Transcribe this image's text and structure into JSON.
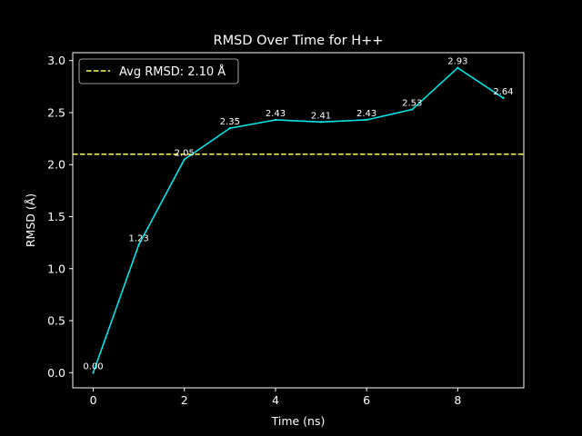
{
  "chart_data": {
    "type": "line",
    "title": "RMSD Over Time for H++",
    "xlabel": "Time (ns)",
    "ylabel": "RMSD (Å)",
    "xlim": [
      -0.45,
      9.45
    ],
    "ylim": [
      -0.146,
      3.076
    ],
    "xticks": [
      0,
      2,
      4,
      6,
      8
    ],
    "xtick_labels": [
      "0",
      "2",
      "4",
      "6",
      "8"
    ],
    "yticks": [
      0.0,
      0.5,
      1.0,
      1.5,
      2.0,
      2.5,
      3.0
    ],
    "ytick_labels": [
      "0.0",
      "0.5",
      "1.0",
      "1.5",
      "2.0",
      "2.5",
      "3.0"
    ],
    "grid": false,
    "legend_position": "upper-left",
    "series": [
      {
        "x": [
          0,
          1,
          2,
          3,
          4,
          5,
          6,
          7,
          8,
          9
        ],
        "values": [
          0.0,
          1.23,
          2.05,
          2.35,
          2.43,
          2.41,
          2.43,
          2.53,
          2.93,
          2.64
        ],
        "data_labels": [
          "0.00",
          "1.23",
          "2.05",
          "2.35",
          "2.43",
          "2.41",
          "2.43",
          "2.53",
          "2.93",
          "2.64"
        ],
        "color": "#00e5e5"
      }
    ],
    "reference_lines": [
      {
        "axis": "y",
        "value": 2.1,
        "label": "Avg RMSD: 2.10 Å",
        "color": "#ffff44",
        "style": "dashed"
      }
    ],
    "colors": {
      "background": "#000000",
      "axes": "#ffffff",
      "text": "#ffffff"
    }
  }
}
